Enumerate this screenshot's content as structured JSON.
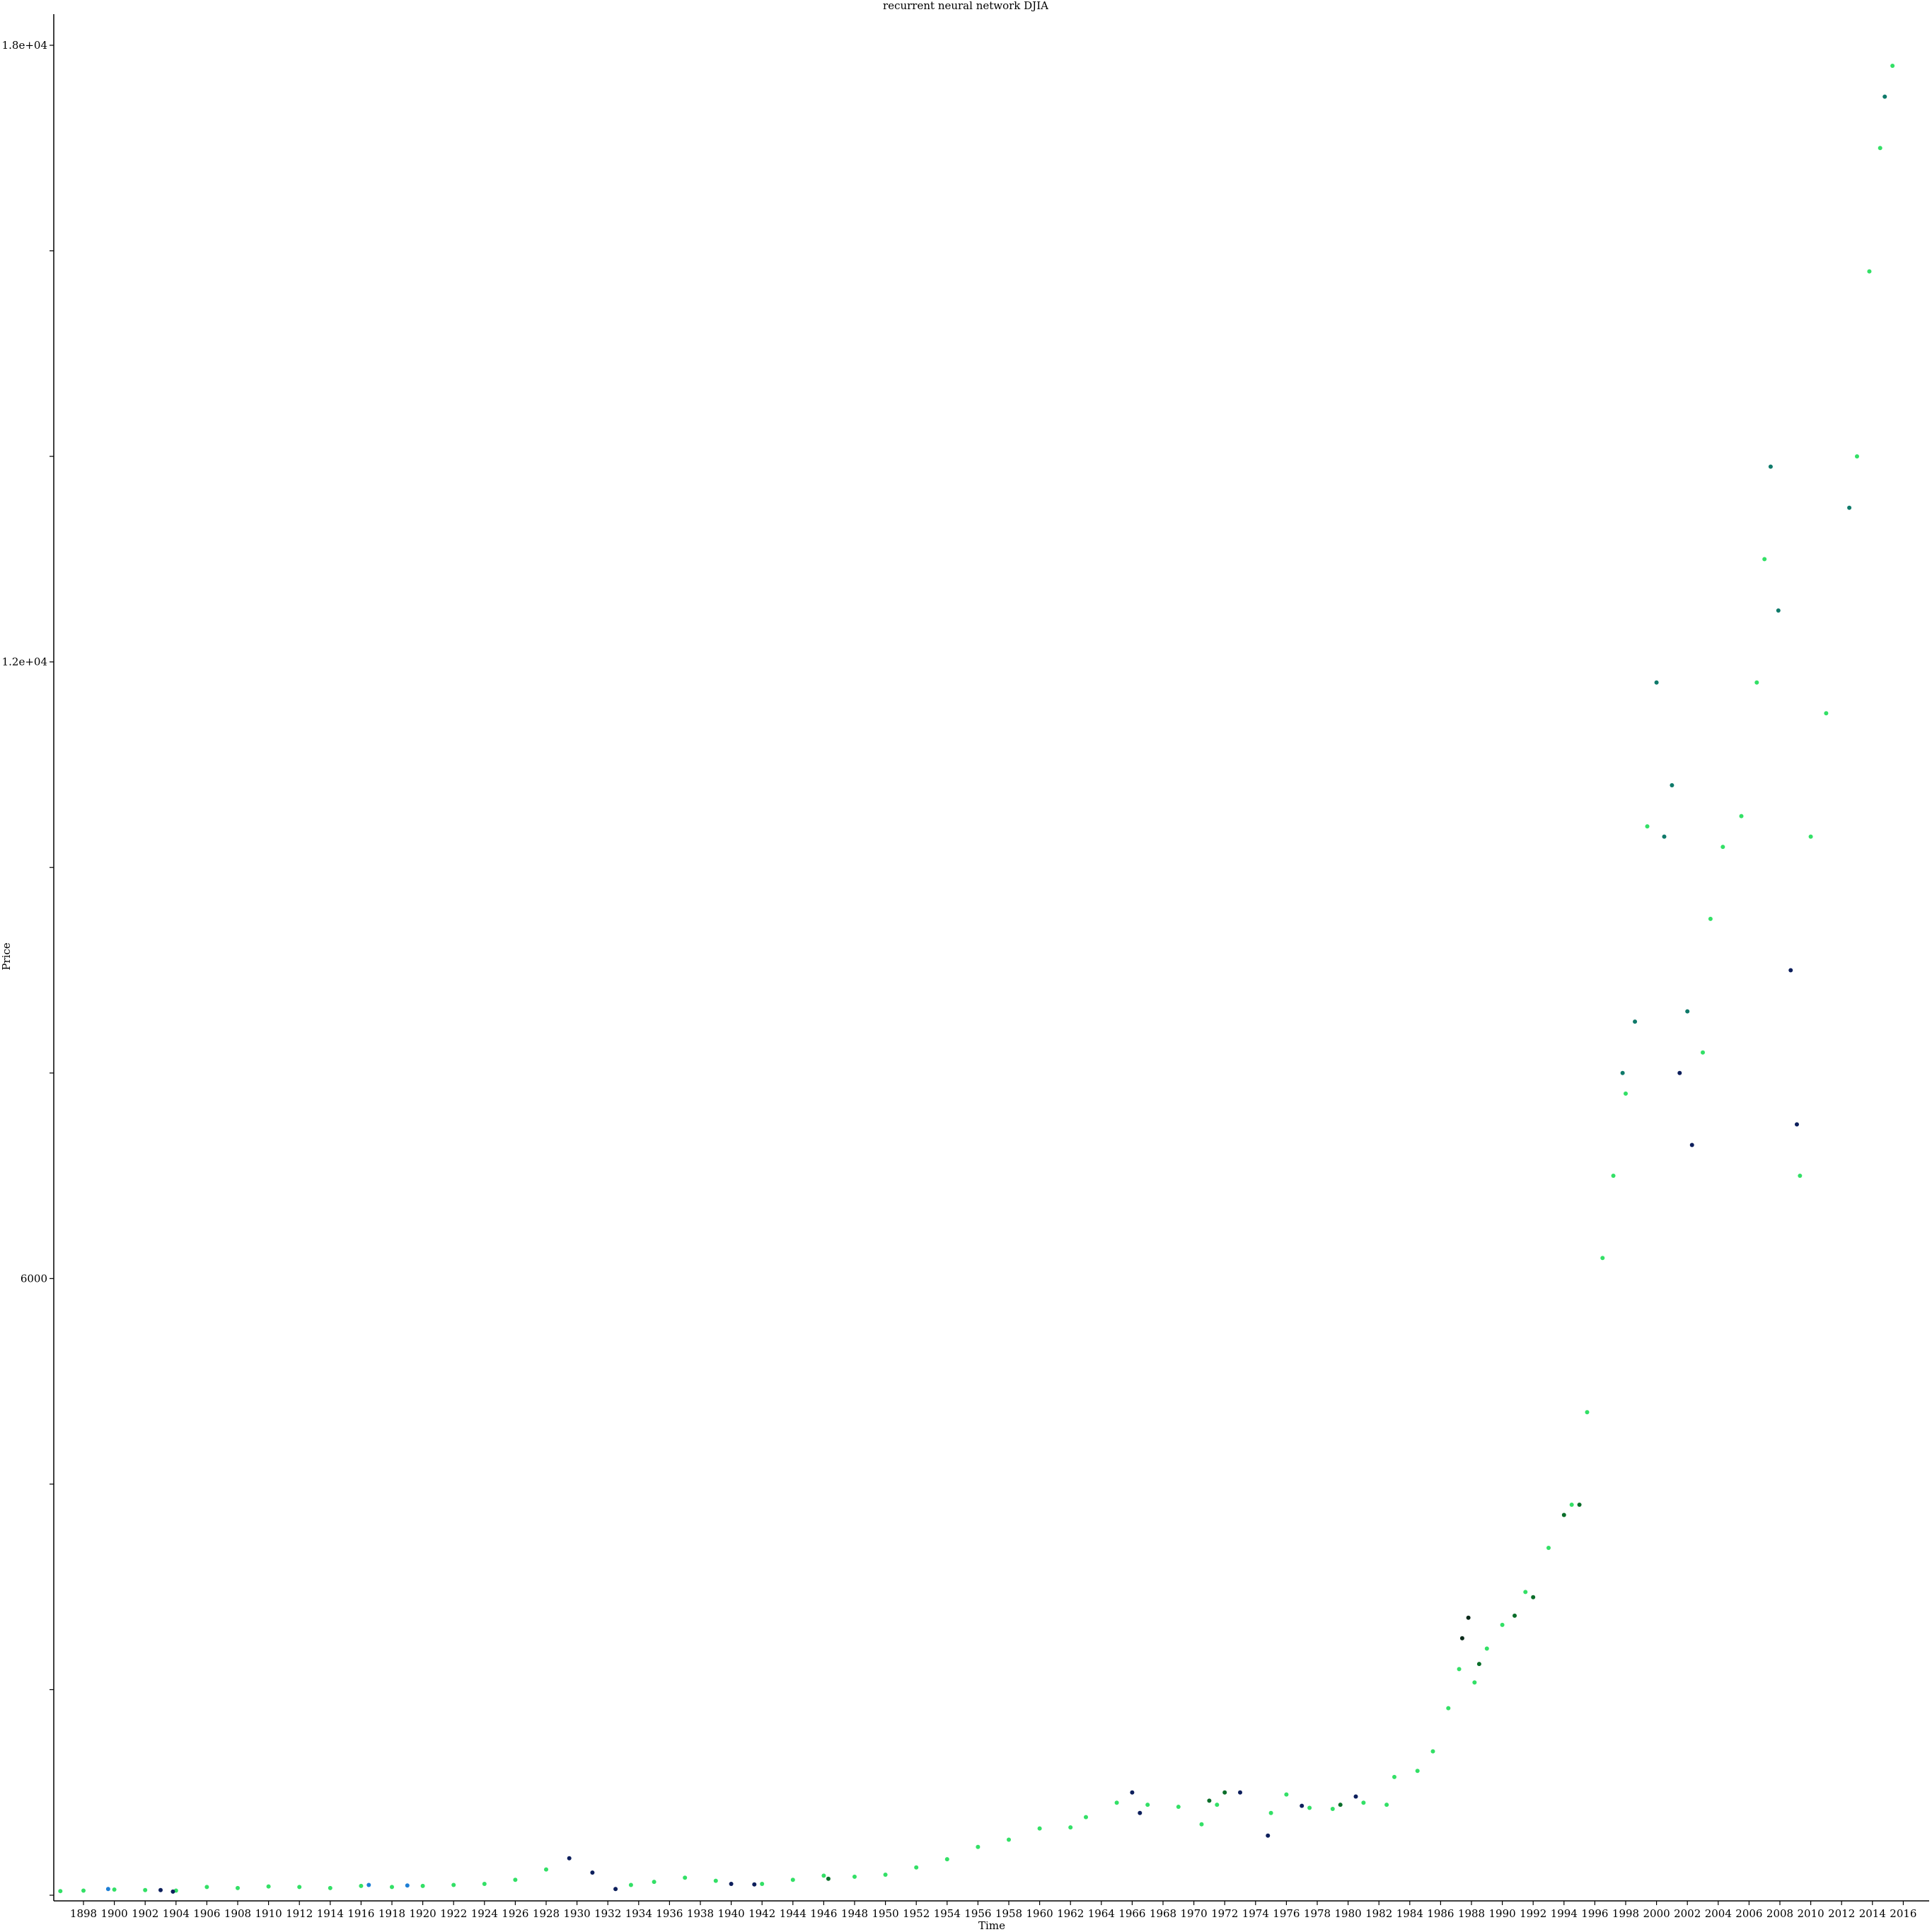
{
  "chart_data": {
    "type": "scatter",
    "title": "recurrent neural network DJIA",
    "xlabel": "Time",
    "ylabel": "Price",
    "xlim": [
      1896.4,
      2016.0
    ],
    "ylim": [
      0,
      18300
    ],
    "y_ticks": [
      {
        "value": 0,
        "label": ""
      },
      {
        "value": 2000,
        "label": ""
      },
      {
        "value": 4000,
        "label": ""
      },
      {
        "value": 6000,
        "label": "6000"
      },
      {
        "value": 8000,
        "label": ""
      },
      {
        "value": 10000,
        "label": ""
      },
      {
        "value": 12000,
        "label": "1.2e+04"
      },
      {
        "value": 14000,
        "label": ""
      },
      {
        "value": 16000,
        "label": ""
      },
      {
        "value": 18000,
        "label": "1.8e+04"
      }
    ],
    "x_tick_labels": [
      "1898",
      "1900",
      "1902",
      "1904",
      "1906",
      "1908",
      "1910",
      "1912",
      "1914",
      "1916",
      "1918",
      "1920",
      "1922",
      "1924",
      "1926",
      "1928",
      "1930",
      "1932",
      "1934",
      "1936",
      "1938",
      "1940",
      "1942",
      "1944",
      "1946",
      "1948",
      "1950",
      "1952",
      "1954",
      "1956",
      "1958",
      "1960",
      "1962",
      "1964",
      "1966",
      "1968",
      "1970",
      "1972",
      "1974",
      "1976",
      "1978",
      "1980",
      "1982",
      "1984",
      "1986",
      "1988",
      "1990",
      "1992",
      "1994",
      "1996",
      "1998",
      "2000",
      "2002",
      "2004",
      "2006",
      "2008",
      "2010",
      "2012",
      "2014",
      "2016"
    ],
    "grid": false,
    "legend": "none",
    "colors": {
      "light_green": "#33e066",
      "green": "#1aa83a",
      "dark_green": "#0b6e2a",
      "teal": "#0f7a6a",
      "navy": "#0d1f5c",
      "blue": "#1e7fd6",
      "black_green": "#0a2a1a"
    },
    "series": [
      {
        "name": "",
        "color_key": "light_green",
        "points": [
          [
            1896.5,
            40
          ],
          [
            1898,
            45
          ],
          [
            1900,
            55
          ],
          [
            1902,
            50
          ],
          [
            1904,
            45
          ],
          [
            1906,
            80
          ],
          [
            1908,
            70
          ],
          [
            1910,
            85
          ],
          [
            1912,
            80
          ],
          [
            1914,
            70
          ],
          [
            1916,
            90
          ],
          [
            1918,
            80
          ],
          [
            1920,
            90
          ],
          [
            1922,
            100
          ],
          [
            1924,
            110
          ],
          [
            1926,
            150
          ],
          [
            1928,
            250
          ],
          [
            1933.5,
            100
          ],
          [
            1935,
            130
          ],
          [
            1937,
            170
          ],
          [
            1939,
            140
          ],
          [
            1942,
            110
          ],
          [
            1944,
            150
          ],
          [
            1946,
            190
          ],
          [
            1948,
            180
          ],
          [
            1950,
            200
          ],
          [
            1952,
            270
          ],
          [
            1954,
            350
          ],
          [
            1956,
            470
          ],
          [
            1958,
            540
          ],
          [
            1960,
            650
          ],
          [
            1962,
            660
          ],
          [
            1963,
            760
          ],
          [
            1965,
            900
          ],
          [
            1967,
            880
          ],
          [
            1969,
            860
          ],
          [
            1970.5,
            690
          ],
          [
            1971.5,
            880
          ],
          [
            1975,
            800
          ],
          [
            1976,
            980
          ],
          [
            1977.5,
            850
          ],
          [
            1979,
            840
          ],
          [
            1981,
            900
          ],
          [
            1982.5,
            880
          ],
          [
            1983,
            1150
          ],
          [
            1984.5,
            1210
          ],
          [
            1985.5,
            1400
          ],
          [
            1986.5,
            1820
          ],
          [
            1987.2,
            2200
          ],
          [
            1988.2,
            2070
          ],
          [
            1989,
            2400
          ],
          [
            1990,
            2630
          ],
          [
            1991.5,
            2950
          ],
          [
            1993,
            3380
          ],
          [
            1994.5,
            3800
          ],
          [
            1995.5,
            4700
          ],
          [
            1996.5,
            6200
          ],
          [
            1997.2,
            7000
          ],
          [
            1998,
            7800
          ],
          [
            1999.4,
            10400
          ],
          [
            2003,
            8200
          ],
          [
            2003.5,
            9500
          ],
          [
            2004.3,
            10200
          ],
          [
            2005.5,
            10500
          ],
          [
            2006.5,
            11800
          ],
          [
            2007,
            13000
          ],
          [
            2009.3,
            7000
          ],
          [
            2010,
            10300
          ],
          [
            2011,
            11500
          ],
          [
            2013,
            14000
          ],
          [
            2013.8,
            15800
          ],
          [
            2014.5,
            17000
          ],
          [
            2015.3,
            17800
          ]
        ]
      },
      {
        "name": "",
        "color_key": "navy",
        "points": [
          [
            1903,
            50
          ],
          [
            1903.8,
            35
          ],
          [
            1929.5,
            360
          ],
          [
            1931,
            220
          ],
          [
            1932.5,
            60
          ],
          [
            1940,
            110
          ],
          [
            1941.5,
            105
          ],
          [
            1966,
            1000
          ],
          [
            1966.5,
            800
          ],
          [
            1973,
            1000
          ],
          [
            1974.8,
            580
          ],
          [
            1977,
            870
          ],
          [
            1980.5,
            960
          ],
          [
            2001.5,
            8000
          ],
          [
            2002.3,
            7300
          ],
          [
            2008.7,
            9000
          ],
          [
            2009.1,
            7500
          ]
        ]
      },
      {
        "name": "",
        "color_key": "teal",
        "points": [
          [
            1997.8,
            8000
          ],
          [
            1998.6,
            8500
          ],
          [
            2000,
            11800
          ],
          [
            2000.5,
            10300
          ],
          [
            2001,
            10800
          ],
          [
            2002,
            8600
          ],
          [
            2007.4,
            13900
          ],
          [
            2007.9,
            12500
          ],
          [
            2012.5,
            13500
          ],
          [
            2014.8,
            17500
          ]
        ]
      },
      {
        "name": "",
        "color_key": "dark_green",
        "points": [
          [
            1946.3,
            160
          ],
          [
            1971,
            920
          ],
          [
            1972,
            1000
          ],
          [
            1979.5,
            880
          ],
          [
            1988.5,
            2250
          ],
          [
            1990.8,
            2720
          ],
          [
            1992,
            2900
          ],
          [
            1994,
            3700
          ],
          [
            1995,
            3800
          ]
        ]
      },
      {
        "name": "",
        "color_key": "blue",
        "points": [
          [
            1899.6,
            60
          ],
          [
            1916.5,
            100
          ],
          [
            1919,
            95
          ]
        ]
      },
      {
        "name": "",
        "color_key": "black_green",
        "points": [
          [
            1987.4,
            2500
          ],
          [
            1987.8,
            2700
          ]
        ]
      }
    ]
  }
}
